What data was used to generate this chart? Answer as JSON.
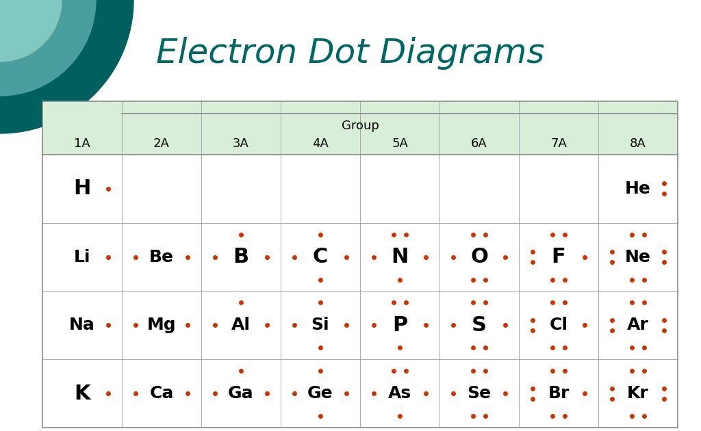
{
  "title": "Electron Dot Diagrams",
  "title_color": "#006666",
  "title_fontsize": 36,
  "bg_color": "#ffffff",
  "table_header_bg": "#d8eed8",
  "dot_color": "#cc3300",
  "dot_size": 5.0,
  "group_label": "Group",
  "col_labels": [
    "1A",
    "2A",
    "3A",
    "4A",
    "5A",
    "6A",
    "7A",
    "8A"
  ],
  "elements": [
    {
      "symbol": "H",
      "row": 0,
      "col": 0,
      "dots": {
        "R": 1
      }
    },
    {
      "symbol": "He",
      "row": 0,
      "col": 7,
      "dots": {
        "R": 2
      }
    },
    {
      "symbol": "Li",
      "row": 1,
      "col": 0,
      "dots": {
        "R": 1
      }
    },
    {
      "symbol": "Be",
      "row": 1,
      "col": 1,
      "dots": {
        "L": 1,
        "R": 1
      }
    },
    {
      "symbol": "B",
      "row": 1,
      "col": 2,
      "dots": {
        "T": 1,
        "L": 1,
        "R": 1
      }
    },
    {
      "symbol": "C",
      "row": 1,
      "col": 3,
      "dots": {
        "T": 1,
        "B": 1,
        "L": 1,
        "R": 1
      }
    },
    {
      "symbol": "N",
      "row": 1,
      "col": 4,
      "dots": {
        "T": 2,
        "B": 1,
        "L": 1,
        "R": 1
      }
    },
    {
      "symbol": "O",
      "row": 1,
      "col": 5,
      "dots": {
        "T": 2,
        "B": 2,
        "L": 1,
        "R": 1
      }
    },
    {
      "symbol": "F",
      "row": 1,
      "col": 6,
      "dots": {
        "T": 2,
        "B": 2,
        "L": 2,
        "R": 1
      }
    },
    {
      "symbol": "Ne",
      "row": 1,
      "col": 7,
      "dots": {
        "T": 2,
        "B": 2,
        "L": 2,
        "R": 2
      }
    },
    {
      "symbol": "Na",
      "row": 2,
      "col": 0,
      "dots": {
        "R": 1
      }
    },
    {
      "symbol": "Mg",
      "row": 2,
      "col": 1,
      "dots": {
        "L": 1,
        "R": 1
      }
    },
    {
      "symbol": "Al",
      "row": 2,
      "col": 2,
      "dots": {
        "T": 1,
        "L": 1,
        "R": 1
      }
    },
    {
      "symbol": "Si",
      "row": 2,
      "col": 3,
      "dots": {
        "T": 1,
        "B": 1,
        "L": 1,
        "R": 1
      }
    },
    {
      "symbol": "P",
      "row": 2,
      "col": 4,
      "dots": {
        "T": 2,
        "B": 1,
        "L": 1,
        "R": 1
      }
    },
    {
      "symbol": "S",
      "row": 2,
      "col": 5,
      "dots": {
        "T": 2,
        "B": 2,
        "L": 1,
        "R": 1
      }
    },
    {
      "symbol": "Cl",
      "row": 2,
      "col": 6,
      "dots": {
        "T": 2,
        "B": 2,
        "L": 2,
        "R": 1
      }
    },
    {
      "symbol": "Ar",
      "row": 2,
      "col": 7,
      "dots": {
        "T": 2,
        "B": 2,
        "L": 2,
        "R": 2
      }
    },
    {
      "symbol": "K",
      "row": 3,
      "col": 0,
      "dots": {
        "R": 1
      }
    },
    {
      "symbol": "Ca",
      "row": 3,
      "col": 1,
      "dots": {
        "L": 1,
        "R": 1
      }
    },
    {
      "symbol": "Ga",
      "row": 3,
      "col": 2,
      "dots": {
        "T": 1,
        "L": 1,
        "R": 1
      }
    },
    {
      "symbol": "Ge",
      "row": 3,
      "col": 3,
      "dots": {
        "T": 1,
        "B": 1,
        "L": 1,
        "R": 1
      }
    },
    {
      "symbol": "As",
      "row": 3,
      "col": 4,
      "dots": {
        "T": 2,
        "B": 1,
        "L": 1,
        "R": 1
      }
    },
    {
      "symbol": "Se",
      "row": 3,
      "col": 5,
      "dots": {
        "T": 2,
        "B": 2,
        "L": 1,
        "R": 1
      }
    },
    {
      "symbol": "Br",
      "row": 3,
      "col": 6,
      "dots": {
        "T": 2,
        "B": 2,
        "L": 2,
        "R": 1
      }
    },
    {
      "symbol": "Kr",
      "row": 3,
      "col": 7,
      "dots": {
        "T": 2,
        "B": 2,
        "L": 2,
        "R": 2
      }
    }
  ],
  "teal_dark": "#006060",
  "teal_mid": "#4a9e9e",
  "teal_light": "#80c8c0",
  "fig_width": 10.24,
  "fig_height": 6.3,
  "dpi": 100
}
